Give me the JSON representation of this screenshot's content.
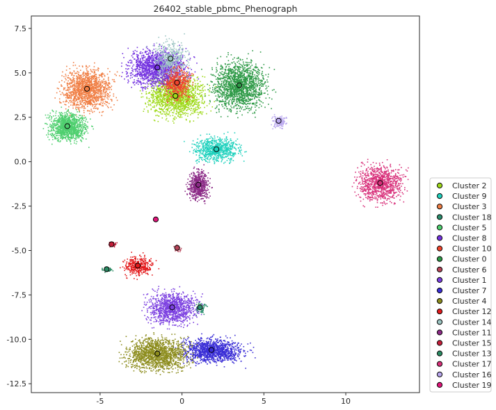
{
  "chart_data": {
    "type": "scatter",
    "title": "26402_stable_pbmc_Phenograph",
    "xlabel": "",
    "ylabel": "",
    "xlim": [
      -9.2,
      14.5
    ],
    "ylim": [
      -13.0,
      8.2
    ],
    "xticks": [
      -5,
      0,
      5,
      10
    ],
    "yticks": [
      -12.5,
      -10.0,
      -7.5,
      -5.0,
      -2.5,
      0.0,
      2.5,
      5.0,
      7.5
    ],
    "grid": false,
    "legend_position": "lower-right-outside",
    "series": [
      {
        "name": "Cluster 2",
        "color": "#9ed91a",
        "centroid": [
          -0.4,
          3.7
        ],
        "spread": [
          1.5,
          1.0
        ],
        "n": 1400
      },
      {
        "name": "Cluster 9",
        "color": "#1fd1bd",
        "centroid": [
          2.1,
          0.7
        ],
        "spread": [
          1.2,
          0.6
        ],
        "n": 700
      },
      {
        "name": "Cluster 3",
        "color": "#f07f45",
        "centroid": [
          -5.8,
          4.1
        ],
        "spread": [
          1.3,
          1.0
        ],
        "n": 1300
      },
      {
        "name": "Cluster 18",
        "color": "#2b8f6e",
        "centroid": [
          1.1,
          -8.2
        ],
        "spread": [
          0.3,
          0.3
        ],
        "n": 60
      },
      {
        "name": "Cluster 5",
        "color": "#4fcf6f",
        "centroid": [
          -7.0,
          2.0
        ],
        "spread": [
          1.0,
          0.7
        ],
        "n": 1100
      },
      {
        "name": "Cluster 8",
        "color": "#7433e0",
        "centroid": [
          -1.5,
          5.3
        ],
        "spread": [
          1.5,
          0.9
        ],
        "n": 1500
      },
      {
        "name": "Cluster 10",
        "color": "#f0442c",
        "centroid": [
          -0.3,
          4.45
        ],
        "spread": [
          0.7,
          0.8
        ],
        "n": 500
      },
      {
        "name": "Cluster 0",
        "color": "#2e9a47",
        "centroid": [
          3.5,
          4.3
        ],
        "spread": [
          1.4,
          1.2
        ],
        "n": 1500
      },
      {
        "name": "Cluster 6",
        "color": "#b8465a",
        "centroid": [
          -0.3,
          -4.85
        ],
        "spread": [
          0.2,
          0.15
        ],
        "n": 40
      },
      {
        "name": "Cluster 1",
        "color": "#7b3fe0",
        "centroid": [
          -0.6,
          -8.2
        ],
        "spread": [
          1.3,
          0.8
        ],
        "n": 1000
      },
      {
        "name": "Cluster 7",
        "color": "#3b2fd6",
        "centroid": [
          1.8,
          -10.6
        ],
        "spread": [
          1.6,
          0.6
        ],
        "n": 1200
      },
      {
        "name": "Cluster 4",
        "color": "#8c8c1d",
        "centroid": [
          -1.5,
          -10.8
        ],
        "spread": [
          1.6,
          0.8
        ],
        "n": 1400
      },
      {
        "name": "Cluster 12",
        "color": "#e31a1c",
        "centroid": [
          -2.7,
          -5.85
        ],
        "spread": [
          0.8,
          0.5
        ],
        "n": 350
      },
      {
        "name": "Cluster 14",
        "color": "#9cc5c2",
        "centroid": [
          -0.7,
          5.8
        ],
        "spread": [
          0.9,
          0.9
        ],
        "n": 400
      },
      {
        "name": "Cluster 11",
        "color": "#8b2a86",
        "centroid": [
          1.0,
          -1.3
        ],
        "spread": [
          0.55,
          0.7
        ],
        "n": 600
      },
      {
        "name": "Cluster 15",
        "color": "#c41e3a",
        "centroid": [
          -4.3,
          -4.65
        ],
        "spread": [
          0.2,
          0.15
        ],
        "n": 40
      },
      {
        "name": "Cluster 13",
        "color": "#2a8a63",
        "centroid": [
          -4.6,
          -6.05
        ],
        "spread": [
          0.25,
          0.1
        ],
        "n": 40
      },
      {
        "name": "Cluster 17",
        "color": "#d8307a",
        "centroid": [
          12.1,
          -1.2
        ],
        "spread": [
          1.2,
          0.9
        ],
        "n": 900
      },
      {
        "name": "Cluster 16",
        "color": "#b9a7ee",
        "centroid": [
          5.9,
          2.3
        ],
        "spread": [
          0.4,
          0.3
        ],
        "n": 150
      },
      {
        "name": "Cluster 19",
        "color": "#e0157a",
        "centroid": [
          -1.6,
          -3.25
        ],
        "spread": [
          0.05,
          0.05
        ],
        "n": 5
      }
    ]
  }
}
